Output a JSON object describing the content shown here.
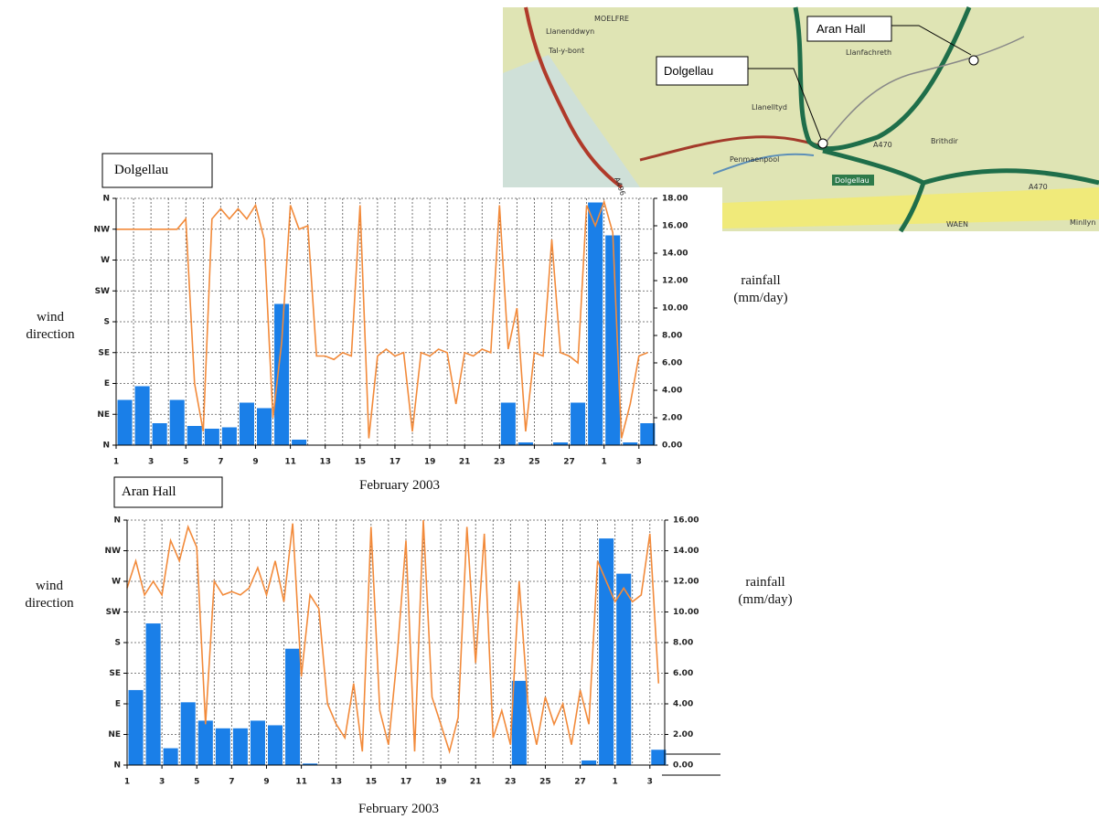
{
  "chart_data": [
    {
      "type": "bar",
      "title": "Dolgellau",
      "xlabel": "February 2003",
      "ylabel": "wind direction",
      "y2label": "rainfall (mm/day)",
      "xlim": [
        1,
        31.85
      ],
      "xticks": [
        1,
        3,
        5,
        7,
        9,
        11,
        13,
        15,
        17,
        19,
        21,
        23,
        25,
        27,
        {
          "value": 29,
          "label": "1"
        },
        {
          "value": 31,
          "label": "3"
        }
      ],
      "xgrid_step": 1,
      "ylim": [
        0,
        360
      ],
      "yticks": [
        {
          "value": 0,
          "label": "N"
        },
        {
          "value": 45,
          "label": "NE"
        },
        {
          "value": 90,
          "label": "E"
        },
        {
          "value": 135,
          "label": "SE"
        },
        {
          "value": 180,
          "label": "S"
        },
        {
          "value": 225,
          "label": "SW"
        },
        {
          "value": 270,
          "label": "W"
        },
        {
          "value": 315,
          "label": "NW"
        },
        {
          "value": 360,
          "label": "N"
        }
      ],
      "y2lim": [
        0,
        18
      ],
      "y2ticks": [
        {
          "value": 0,
          "label": "0.00"
        },
        {
          "value": 2,
          "label": "2.00"
        },
        {
          "value": 4,
          "label": "4.00"
        },
        {
          "value": 6,
          "label": "6.00"
        },
        {
          "value": 8,
          "label": "8.00"
        },
        {
          "value": 10,
          "label": "10.00"
        },
        {
          "value": 12,
          "label": "12.00"
        },
        {
          "value": 14,
          "label": "14.00"
        },
        {
          "value": 16,
          "label": "16.00"
        },
        {
          "value": 18,
          "label": "18.00"
        }
      ],
      "grid": true,
      "series": [
        {
          "type": "bar",
          "axis": "y2",
          "color": "#1a7fe8",
          "x": [
            1,
            2,
            3,
            4,
            5,
            6,
            7,
            8,
            9,
            10,
            11,
            12,
            13,
            14,
            15,
            16,
            17,
            18,
            19,
            20,
            21,
            22,
            23,
            24,
            25,
            26,
            27,
            28,
            29,
            30,
            31
          ],
          "values": [
            3.3,
            4.3,
            1.6,
            3.3,
            1.4,
            1.2,
            1.3,
            3.1,
            2.7,
            10.3,
            0.4,
            0,
            0,
            0,
            0,
            0,
            0,
            0,
            0,
            0,
            0,
            0,
            3.1,
            0.2,
            0,
            0.2,
            3.1,
            17.7,
            15.3,
            0.2,
            1.6
          ]
        },
        {
          "type": "line",
          "axis": "y",
          "color": "#f28a3a",
          "x": [
            1,
            1.5,
            2,
            2.5,
            3,
            3.5,
            4,
            4.5,
            5,
            5.5,
            6,
            6.5,
            7,
            7.5,
            8,
            8.5,
            9,
            9.5,
            10,
            10.5,
            11,
            11.5,
            12,
            12.5,
            13,
            13.5,
            14,
            14.5,
            15,
            15.5,
            16,
            16.5,
            17,
            17.5,
            18,
            18.5,
            19,
            19.5,
            20,
            20.5,
            21,
            21.5,
            22,
            22.5,
            23,
            23.5,
            24,
            24.5,
            25,
            25.5,
            26,
            26.5,
            27,
            27.5,
            28,
            28.5,
            29,
            29.5,
            30,
            30.5,
            31,
            31.5
          ],
          "values": [
            315,
            315,
            315,
            315,
            315,
            315,
            315,
            315,
            330,
            90,
            20,
            330,
            345,
            330,
            345,
            330,
            350,
            300,
            40,
            150,
            350,
            315,
            320,
            130,
            130,
            125,
            135,
            130,
            350,
            10,
            130,
            140,
            130,
            135,
            20,
            135,
            130,
            140,
            135,
            60,
            135,
            130,
            140,
            135,
            350,
            140,
            200,
            20,
            135,
            130,
            300,
            135,
            130,
            120,
            350,
            320,
            355,
            310,
            10,
            60,
            130,
            135
          ]
        }
      ]
    },
    {
      "type": "bar",
      "title": "Aran Hall",
      "xlabel": "February 2003",
      "ylabel": "wind direction",
      "y2label": "rainfall (mm/day)",
      "xlim": [
        1,
        31.85
      ],
      "xticks": [
        1,
        3,
        5,
        7,
        9,
        11,
        13,
        15,
        17,
        19,
        21,
        23,
        25,
        27,
        {
          "value": 29,
          "label": "1"
        },
        {
          "value": 31,
          "label": "3"
        }
      ],
      "xgrid_step": 1,
      "ylim": [
        0,
        360
      ],
      "yticks": [
        {
          "value": 0,
          "label": "N"
        },
        {
          "value": 45,
          "label": "NE"
        },
        {
          "value": 90,
          "label": "E"
        },
        {
          "value": 135,
          "label": "SE"
        },
        {
          "value": 180,
          "label": "S"
        },
        {
          "value": 225,
          "label": "SW"
        },
        {
          "value": 270,
          "label": "W"
        },
        {
          "value": 315,
          "label": "NW"
        },
        {
          "value": 360,
          "label": "N"
        }
      ],
      "y2lim": [
        0,
        16
      ],
      "y2ticks": [
        {
          "value": 0,
          "label": "0.00"
        },
        {
          "value": 2,
          "label": "2.00"
        },
        {
          "value": 4,
          "label": "4.00"
        },
        {
          "value": 6,
          "label": "6.00"
        },
        {
          "value": 8,
          "label": "8.00"
        },
        {
          "value": 10,
          "label": "10.00"
        },
        {
          "value": 12,
          "label": "12.00"
        },
        {
          "value": 14,
          "label": "14.00"
        },
        {
          "value": 16,
          "label": "16.00"
        }
      ],
      "grid": true,
      "series": [
        {
          "type": "bar",
          "axis": "y2",
          "color": "#1a7fe8",
          "x": [
            1,
            2,
            3,
            4,
            5,
            6,
            7,
            8,
            9,
            10,
            11,
            12,
            13,
            14,
            15,
            16,
            17,
            18,
            19,
            20,
            21,
            22,
            23,
            24,
            25,
            26,
            27,
            28,
            29,
            30,
            31
          ],
          "values": [
            4.9,
            9.25,
            1.1,
            4.1,
            2.9,
            2.4,
            2.4,
            2.9,
            2.6,
            7.6,
            0.1,
            0,
            0,
            0,
            0,
            0,
            0,
            0,
            0,
            0,
            0,
            0,
            5.5,
            0,
            0,
            0,
            0.3,
            14.8,
            12.5,
            0,
            1
          ]
        },
        {
          "type": "line",
          "axis": "y",
          "color": "#f28a3a",
          "x": [
            1,
            1.5,
            2,
            2.5,
            3,
            3.5,
            4,
            4.5,
            5,
            5.5,
            6,
            6.5,
            7,
            7.5,
            8,
            8.5,
            9,
            9.5,
            10,
            10.5,
            11,
            11.5,
            12,
            12.5,
            13,
            13.5,
            14,
            14.5,
            15,
            15.5,
            16,
            16.5,
            17,
            17.5,
            18,
            18.5,
            19,
            19.5,
            20,
            20.5,
            21,
            21.5,
            22,
            22.5,
            23,
            23.5,
            24,
            24.5,
            25,
            25.5,
            26,
            26.5,
            27,
            27.5,
            28,
            28.5,
            29,
            29.5,
            30,
            30.5,
            31,
            31.5
          ],
          "values": [
            260,
            300,
            250,
            270,
            250,
            330,
            300,
            350,
            320,
            60,
            270,
            250,
            255,
            250,
            260,
            290,
            250,
            300,
            240,
            355,
            130,
            250,
            230,
            90,
            60,
            40,
            120,
            20,
            350,
            80,
            30,
            160,
            330,
            20,
            360,
            100,
            60,
            20,
            70,
            350,
            150,
            340,
            40,
            80,
            30,
            270,
            90,
            30,
            100,
            60,
            90,
            30,
            110,
            60,
            300,
            270,
            240,
            260,
            240,
            250,
            340,
            120
          ]
        }
      ]
    }
  ],
  "map": {
    "callouts": [
      "Aran Hall",
      "Dolgellau"
    ],
    "labels": [
      "MOELFRE",
      "Llanenddwyn",
      "Tal-y-bont",
      "Llanfachreth",
      "Llanelltyd",
      "Penmaenpool",
      "Dolgellau",
      "Brithdir",
      "A470",
      "A470",
      "Minllyn",
      "WAEN",
      "A496"
    ]
  }
}
